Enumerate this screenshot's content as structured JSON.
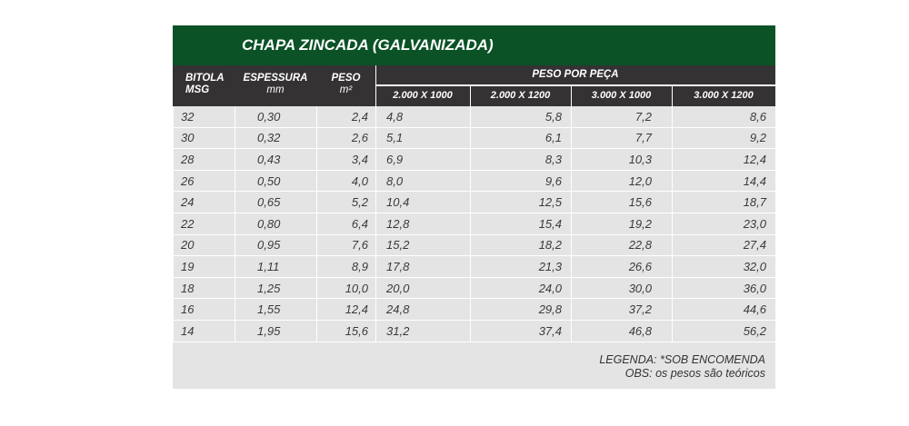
{
  "title": "CHAPA ZINCADA (GALVANIZADA)",
  "headers": {
    "bitola": "BITOLA",
    "msg": "MSG",
    "espessura": "ESPESSURA",
    "mm": "mm",
    "peso": "PESO",
    "m2": "m²",
    "peso_por_peca": "PESO   POR PEÇA",
    "sizes": [
      "2.000 X 1000",
      "2.000 X 1200",
      "3.000 X 1000",
      "3.000 X 1200"
    ]
  },
  "rows": [
    [
      "32",
      "0,30",
      "2,4",
      "4,8",
      "5,8",
      "7,2",
      "8,6"
    ],
    [
      "30",
      "0,32",
      "2,6",
      "5,1",
      "6,1",
      "7,7",
      "9,2"
    ],
    [
      "28",
      "0,43",
      "3,4",
      "6,9",
      "8,3",
      "10,3",
      "12,4"
    ],
    [
      "26",
      "0,50",
      "4,0",
      "8,0",
      "9,6",
      "12,0",
      "14,4"
    ],
    [
      "24",
      "0,65",
      "5,2",
      "10,4",
      "12,5",
      "15,6",
      "18,7"
    ],
    [
      "22",
      "0,80",
      "6,4",
      "12,8",
      "15,4",
      "19,2",
      "23,0"
    ],
    [
      "20",
      "0,95",
      "7,6",
      "15,2",
      "18,2",
      "22,8",
      "27,4"
    ],
    [
      "19",
      "1,11",
      "8,9",
      "17,8",
      "21,3",
      "26,6",
      "32,0"
    ],
    [
      "18",
      "1,25",
      "10,0",
      "20,0",
      "24,0",
      "30,0",
      "36,0"
    ],
    [
      "16",
      "1,55",
      "12,4",
      "24,8",
      "29,8",
      "37,2",
      "44,6"
    ],
    [
      "14",
      "1,95",
      "15,6",
      "31,2",
      "37,4",
      "46,8",
      "56,2"
    ]
  ],
  "legend": "LEGENDA: *SOB ENCOMENDA",
  "obs": "OBS: os pesos são teóricos",
  "colors": {
    "title_bg": "#0b5226",
    "header_bg": "#353233",
    "row_bg": "#e4e4e5"
  }
}
